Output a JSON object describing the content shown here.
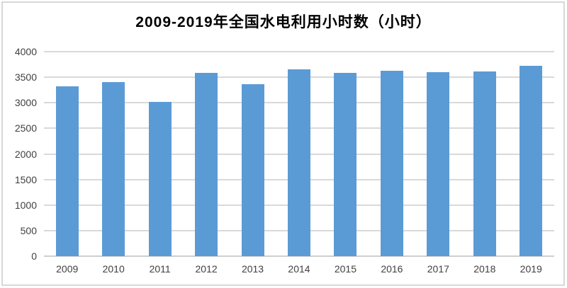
{
  "chart_data": {
    "type": "bar",
    "title": "2009-2019年全国水电利用小时数（小时）",
    "categories": [
      "2009",
      "2010",
      "2011",
      "2012",
      "2013",
      "2014",
      "2015",
      "2016",
      "2017",
      "2018",
      "2019"
    ],
    "values": [
      3328,
      3404,
      3019,
      3591,
      3359,
      3653,
      3590,
      3621,
      3597,
      3613,
      3726
    ],
    "xlabel": "",
    "ylabel": "",
    "ylim": [
      0,
      4000
    ],
    "yticks": [
      0,
      500,
      1000,
      1500,
      2000,
      2500,
      3000,
      3500,
      4000
    ],
    "grid": true,
    "legend": "none",
    "bar_color": "#5b9bd5",
    "gridline_color": "#d9d9d9",
    "axis_line_color": "#cfcfcf",
    "axis_text_color": "#404040",
    "title_color": "#000000"
  }
}
